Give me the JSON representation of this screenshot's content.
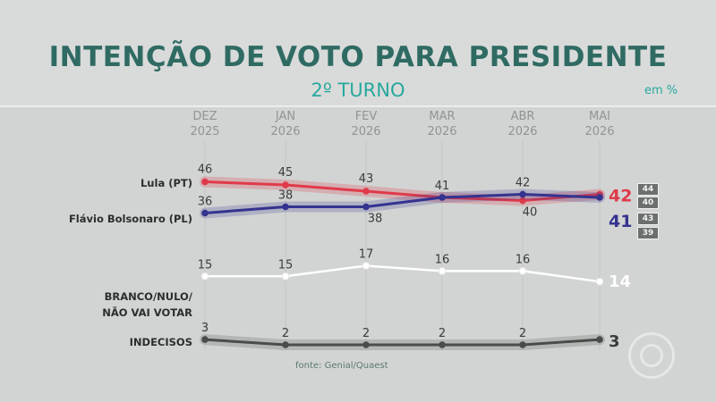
{
  "header": {
    "title": "INTENÇÃO DE VOTO PARA PRESIDENTE",
    "subtitle": "2º TURNO",
    "unit": "em %"
  },
  "months": [
    {
      "l1": "DEZ",
      "l2": "2025"
    },
    {
      "l1": "JAN",
      "l2": "2026"
    },
    {
      "l1": "FEV",
      "l2": "2026"
    },
    {
      "l1": "MAR",
      "l2": "2026"
    },
    {
      "l1": "ABR",
      "l2": "2026"
    },
    {
      "l1": "MAI",
      "l2": "2026"
    }
  ],
  "series_labels": {
    "lula": "Lula (PT)",
    "flavio": "Flávio Bolsonaro (PL)",
    "branco_line1": "BRANCO/NULO/",
    "branco_line2": "NÃO VAI VOTAR",
    "indecisos": "INDECISOS"
  },
  "margins": {
    "lula": [
      "44",
      "40"
    ],
    "flavio": [
      "43",
      "39"
    ]
  },
  "source": "fonte: Genial/Quaest",
  "colors": {
    "lula": "#e03a4a",
    "flavio": "#34338f",
    "branco": "#ffffff",
    "indecisos": "#4a4c4b",
    "title": "#2f6b63",
    "accent": "#27a99d"
  },
  "chart_data": {
    "type": "line",
    "categories": [
      "DEZ 2025",
      "JAN 2026",
      "FEV 2026",
      "MAR 2026",
      "ABR 2026",
      "MAI 2026"
    ],
    "series": [
      {
        "name": "Lula (PT)",
        "values": [
          46,
          45,
          43,
          41,
          40,
          42
        ],
        "labels": [
          "46",
          "45",
          "43",
          "",
          "40",
          "42"
        ]
      },
      {
        "name": "Flávio Bolsonaro (PL)",
        "values": [
          36,
          38,
          38,
          41,
          42,
          41
        ],
        "labels": [
          "36",
          "38",
          "38",
          "41",
          "42",
          "41"
        ]
      },
      {
        "name": "BRANCO/NULO/ NÃO VAI VOTAR",
        "values": [
          15,
          15,
          17,
          16,
          16,
          14
        ],
        "labels": [
          "15",
          "15",
          "17",
          "16",
          "16",
          "14"
        ]
      },
      {
        "name": "INDECISOS",
        "values": [
          3,
          2,
          2,
          2,
          2,
          3
        ],
        "labels": [
          "3",
          "2",
          "2",
          "2",
          "2",
          "3"
        ]
      }
    ],
    "grid": true,
    "legend": "left"
  }
}
